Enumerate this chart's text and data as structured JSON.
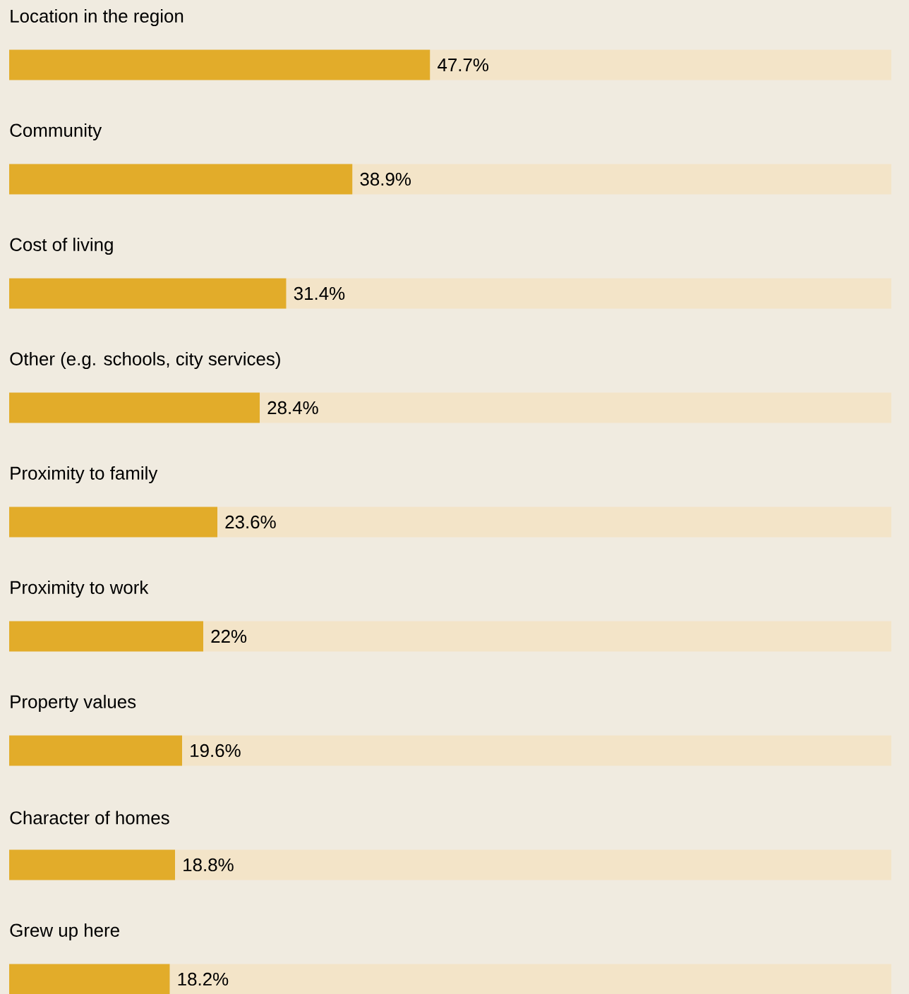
{
  "chart_data": {
    "type": "bar",
    "orientation": "horizontal",
    "stacked": true,
    "categories": [
      "Location in the region",
      "Community",
      "Cost of living",
      "Other (e.g. schools, city services)",
      "Proximity to family",
      "Proximity to work",
      "Property values",
      "Character of homes",
      "Grew up here"
    ],
    "series": [
      {
        "color": "#e2ac2a",
        "values": [
          47.7,
          38.9,
          31.4,
          28.4,
          23.6,
          22,
          19.6,
          18.8,
          18.2
        ],
        "value_labels": [
          "47.7%",
          "38.9%",
          "31.4%",
          "28.4%",
          "23.6%",
          "22%",
          "19.6%",
          "18.8%",
          "18.2%"
        ]
      },
      {
        "color": "#f3e4c8",
        "values": [
          52.3,
          61.1,
          68.6,
          71.6,
          76.4,
          78,
          80.4,
          81.2,
          81.8
        ]
      }
    ],
    "xlim": [
      0,
      100
    ]
  }
}
